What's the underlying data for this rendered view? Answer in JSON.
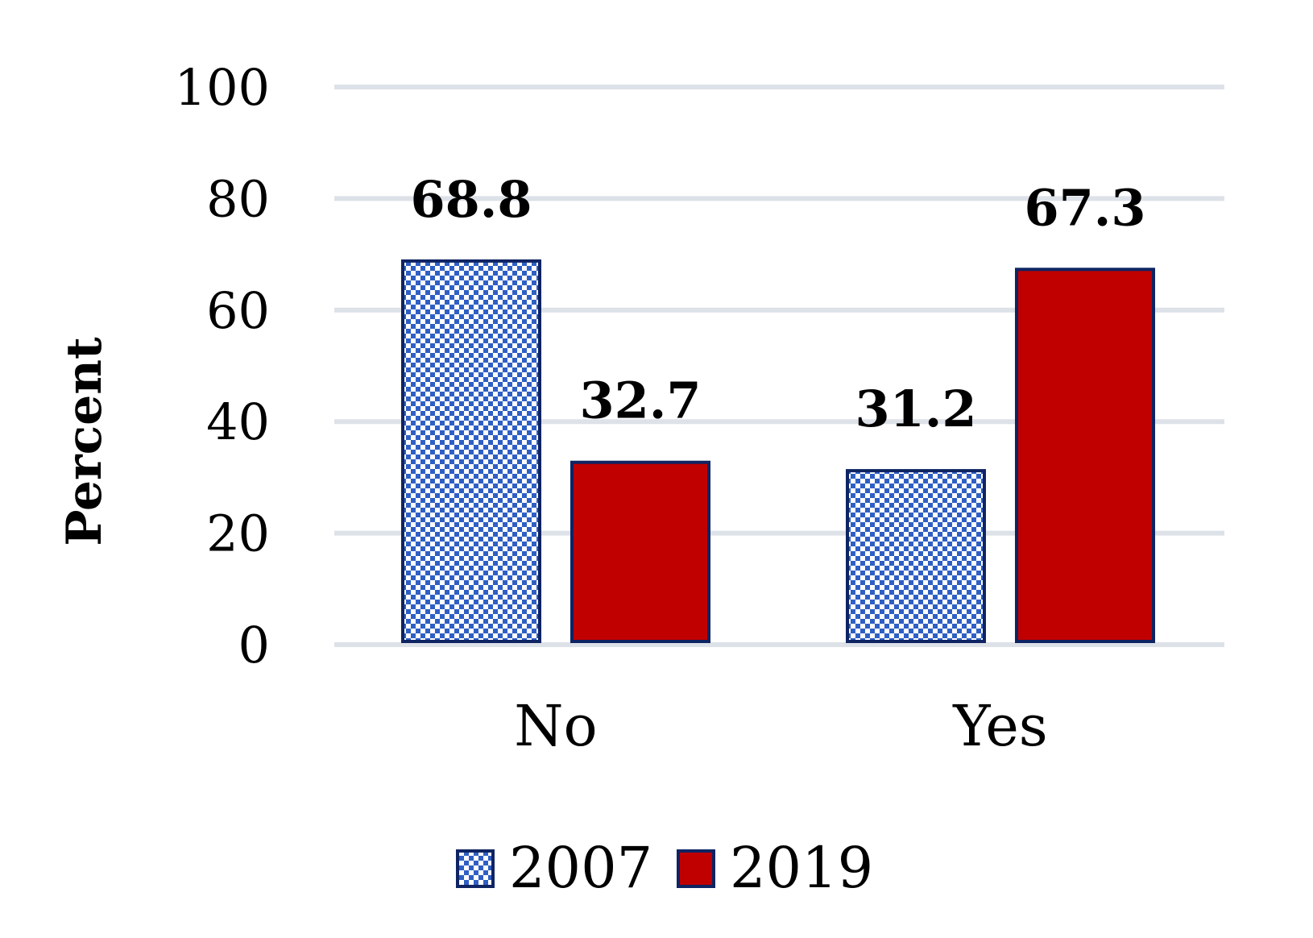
{
  "chart_data": {
    "type": "bar",
    "categories": [
      "No",
      "Yes"
    ],
    "series": [
      {
        "name": "2007",
        "values": [
          68.8,
          31.2
        ],
        "color": "#2F5FC4",
        "pattern": "checkered"
      },
      {
        "name": "2019",
        "values": [
          32.7,
          67.3
        ],
        "color": "#C00000",
        "pattern": "solid"
      }
    ],
    "ylabel": "Percent",
    "xlabel": "",
    "ylim": [
      0,
      100
    ],
    "yticks": [
      0,
      20,
      40,
      60,
      80,
      100
    ],
    "grid": true,
    "legend_position": "bottom",
    "border_color": "#0F2462"
  }
}
